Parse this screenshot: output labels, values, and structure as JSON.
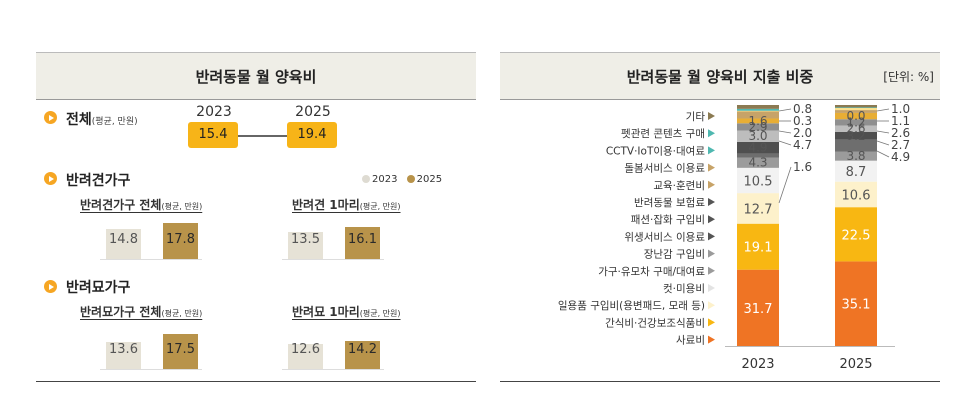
{
  "left": {
    "title": "반려동물 월 양육비",
    "total": {
      "heading": "전체",
      "note": "(평균, 만원)",
      "years": [
        "2023",
        "2025"
      ],
      "values": [
        "15.4",
        "19.4"
      ]
    },
    "legend": [
      "2023",
      "2025"
    ],
    "dog": {
      "heading": "반려견가구",
      "groups": [
        {
          "title": "반려견가구 전체",
          "note": "(평균, 만원)",
          "values": [
            14.8,
            17.8
          ]
        },
        {
          "title": "반려견 1마리",
          "note": "(평균, 만원)",
          "values": [
            13.5,
            16.1
          ]
        }
      ]
    },
    "cat": {
      "heading": "반려묘가구",
      "groups": [
        {
          "title": "반려묘가구 전체",
          "note": "(평균, 만원)",
          "values": [
            13.6,
            17.5
          ]
        },
        {
          "title": "반려묘 1마리",
          "note": "(평균, 만원)",
          "values": [
            12.6,
            14.2
          ]
        }
      ]
    }
  },
  "right": {
    "title": "반려동물 월 양육비 지출 비중",
    "unit": "[단위: %]"
  },
  "colors": {
    "y2023": "#e6e2d6",
    "y2025": "#b8934a",
    "accent": "#f7b418",
    "bullet": "#f6a623"
  },
  "chart_data": {
    "type": "bar",
    "stacked": true,
    "categories": [
      "2023",
      "2025"
    ],
    "series": [
      {
        "name": "사료비",
        "color": "#ef7424",
        "values": [
          31.7,
          35.1
        ]
      },
      {
        "name": "간식비·건강보조식품비",
        "color": "#f8b712",
        "values": [
          19.1,
          22.5
        ]
      },
      {
        "name": "일용품 구입비(용변패드, 모래 등)",
        "color": "#fdf1cb",
        "values": [
          12.7,
          10.6
        ]
      },
      {
        "name": "컷·미용비",
        "color": "#f2f2f2",
        "values": [
          10.5,
          8.7
        ]
      },
      {
        "name": "가구·유모차 구매/대여료",
        "color": "#9b9b9b",
        "values": [
          4.3,
          3.8
        ]
      },
      {
        "name": "장난감 구입비",
        "color": "#6e6e6e",
        "values": [
          1.6,
          4.9
        ]
      },
      {
        "name": "위생서비스 이용료",
        "color": "#4f4f4f",
        "values": [
          4.9,
          3.2
        ]
      },
      {
        "name": "패션·잡화 구입비",
        "color": "#bdbdbd",
        "values": [
          4.7,
          2.7
        ]
      },
      {
        "name": "반려동물 보험료",
        "color": "#8f8f8f",
        "values": [
          3.0,
          2.6
        ]
      },
      {
        "name": "교육·훈련비",
        "color": "#e8ae35",
        "values": [
          2.0,
          2.6
        ]
      },
      {
        "name": "돌봄서비스 이용료",
        "color": "#c7a368",
        "values": [
          2.9,
          1.2
        ]
      },
      {
        "name": "CCTV·IoT이용·대여료",
        "color": "#fbe08e",
        "values": [
          0.3,
          1.1
        ]
      },
      {
        "name": "펫관련 콘텐츠 구매",
        "color": "#4fb8b0",
        "values": [
          0.8,
          0.0
        ]
      },
      {
        "name": "기타",
        "color": "#8b7a52",
        "values": [
          1.6,
          1.0
        ]
      }
    ],
    "legend_order": [
      "기타",
      "펫관련 콘텐츠 구매",
      "CCTV·IoT이용·대여료",
      "돌봄서비스 이용료",
      "교육·훈련비",
      "반려동물 보험료",
      "패션·잡화 구입비",
      "위생서비스 이용료",
      "장난감 구입비",
      "가구·유모차 구매/대여료",
      "컷·미용비",
      "일용품 구입비(용변패드, 모래 등)",
      "간식비·건강보조식품비",
      "사료비"
    ],
    "legend_arrow_colors": [
      "#8b7a52",
      "#4fb8b0",
      "#4fb8b0",
      "#c7a368",
      "#c7a368",
      "#555555",
      "#555555",
      "#555555",
      "#9b9b9b",
      "#9b9b9b",
      "#e3e3e3",
      "#fdf1cb",
      "#f8b712",
      "#ef7424"
    ],
    "inside_labels": [
      [
        "31.7",
        "19.1",
        "12.7",
        "10.5",
        "4.3",
        "4.9",
        "3.0",
        "2.9",
        "1.6"
      ],
      [
        "35.1",
        "22.5",
        "10.6",
        "8.7",
        "3.8",
        "3.2",
        "2.6",
        "1.2",
        "0.0"
      ]
    ],
    "outside_labels": [
      [
        "0.8",
        "0.3",
        "2.0",
        "4.7",
        "1.6"
      ],
      [
        "1.0",
        "1.1",
        "2.6",
        "2.7",
        "4.9"
      ]
    ],
    "ylim": [
      0,
      100
    ],
    "legend": "left"
  }
}
